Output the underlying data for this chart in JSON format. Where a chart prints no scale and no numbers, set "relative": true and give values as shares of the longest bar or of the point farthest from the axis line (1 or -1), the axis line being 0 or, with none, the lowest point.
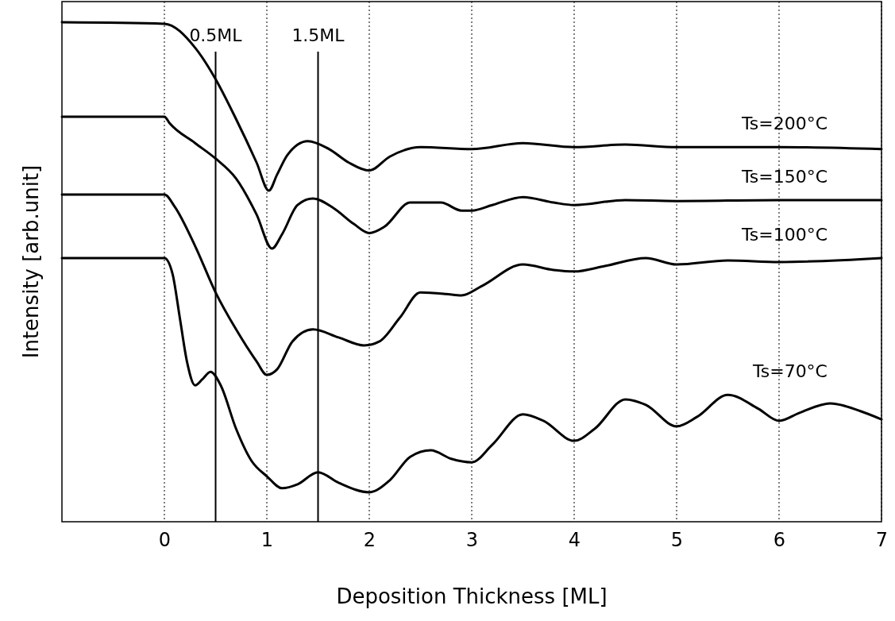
{
  "chart_data": {
    "type": "line",
    "xlabel": "Deposition Thickness [ML]",
    "ylabel": "Intensity [arb.unit]",
    "relative": true,
    "xlim": [
      -1,
      7
    ],
    "xticks": [
      0,
      1,
      2,
      3,
      4,
      5,
      6,
      7
    ],
    "grid": "x",
    "line_style": "solid",
    "marker": "none",
    "ref_lines": [
      {
        "axis": "x",
        "value": 0.5,
        "label": "0.5ML",
        "color": "#000000",
        "line_style": "solid"
      },
      {
        "axis": "x",
        "value": 1.5,
        "label": "1.5ML",
        "color": "#000000",
        "line_style": "solid"
      }
    ],
    "series": [
      {
        "name": "Ts=200°C",
        "color": "#000000",
        "x": [
          -1,
          0,
          0.3,
          0.5,
          0.7,
          0.9,
          1.02,
          1.1,
          1.2,
          1.4,
          1.6,
          1.8,
          2.0,
          2.2,
          2.5,
          3.0,
          3.5,
          4.0,
          4.5,
          5.0,
          6.0,
          7.0
        ],
        "values": [
          1.0,
          0.997,
          0.949,
          0.886,
          0.806,
          0.719,
          0.663,
          0.695,
          0.734,
          0.762,
          0.747,
          0.719,
          0.703,
          0.731,
          0.75,
          0.746,
          0.758,
          0.75,
          0.755,
          0.75,
          0.75,
          0.746
        ]
      },
      {
        "name": "Ts=150°C",
        "color": "#000000",
        "x": [
          -1,
          0,
          0.05,
          0.3,
          0.5,
          0.7,
          0.9,
          1.05,
          1.15,
          1.3,
          1.45,
          1.65,
          1.85,
          2.0,
          2.15,
          2.4,
          2.7,
          2.9,
          3.0,
          3.2,
          3.5,
          3.8,
          4.0,
          4.5,
          5.0,
          6.0,
          7.0
        ],
        "values": [
          0.811,
          0.811,
          0.798,
          0.758,
          0.727,
          0.687,
          0.615,
          0.547,
          0.576,
          0.634,
          0.647,
          0.628,
          0.596,
          0.578,
          0.591,
          0.639,
          0.639,
          0.623,
          0.623,
          0.634,
          0.65,
          0.639,
          0.634,
          0.644,
          0.642,
          0.644,
          0.644
        ]
      },
      {
        "name": "Ts=100°C",
        "color": "#000000",
        "x": [
          -1,
          0,
          0.1,
          0.3,
          0.5,
          0.7,
          0.9,
          1.0,
          1.1,
          1.25,
          1.45,
          1.7,
          1.95,
          2.1,
          2.3,
          2.5,
          2.75,
          2.9,
          3.1,
          3.5,
          3.8,
          4.0,
          4.3,
          4.7,
          5.0,
          5.5,
          6.0,
          7.0
        ],
        "values": [
          0.655,
          0.655,
          0.631,
          0.552,
          0.459,
          0.385,
          0.321,
          0.294,
          0.305,
          0.361,
          0.385,
          0.369,
          0.353,
          0.361,
          0.409,
          0.459,
          0.456,
          0.453,
          0.472,
          0.515,
          0.504,
          0.501,
          0.512,
          0.528,
          0.515,
          0.523,
          0.52,
          0.528
        ]
      },
      {
        "name": "Ts=70°C",
        "color": "#000000",
        "x": [
          -1,
          0,
          0.08,
          0.15,
          0.22,
          0.3,
          0.37,
          0.45,
          0.55,
          0.7,
          0.85,
          1.0,
          1.15,
          1.3,
          1.5,
          1.7,
          2.0,
          2.2,
          2.4,
          2.6,
          2.8,
          3.0,
          3.2,
          3.5,
          3.7,
          4.0,
          4.2,
          4.5,
          4.7,
          5.0,
          5.2,
          5.5,
          5.8,
          6.0,
          6.2,
          6.5,
          6.8,
          7.0
        ],
        "values": [
          0.528,
          0.528,
          0.496,
          0.409,
          0.321,
          0.273,
          0.285,
          0.3,
          0.273,
          0.186,
          0.122,
          0.091,
          0.067,
          0.075,
          0.099,
          0.078,
          0.059,
          0.083,
          0.13,
          0.143,
          0.126,
          0.119,
          0.154,
          0.215,
          0.202,
          0.162,
          0.186,
          0.245,
          0.234,
          0.191,
          0.21,
          0.254,
          0.226,
          0.202,
          0.218,
          0.237,
          0.221,
          0.205
        ]
      }
    ]
  }
}
